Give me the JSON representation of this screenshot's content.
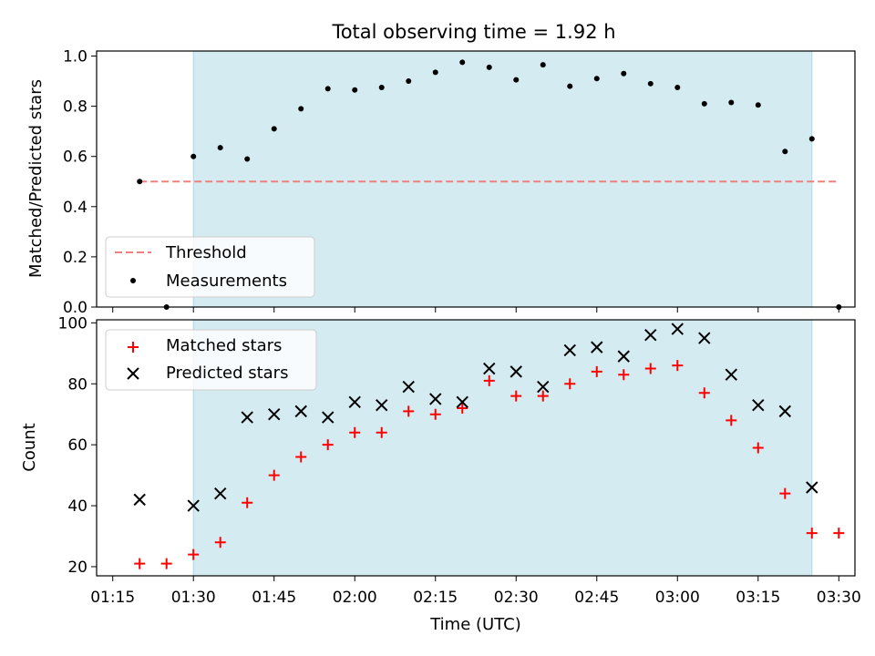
{
  "figure": {
    "title": "Total observing time = 1.92 h"
  },
  "chart_data": [
    {
      "type": "scatter",
      "ylabel": "Matched/Predicted stars",
      "xlabel": "",
      "xlim": [
        "01:12",
        "03:33"
      ],
      "ylim": [
        0,
        1.02
      ],
      "xticks": [
        "01:15",
        "01:30",
        "01:45",
        "02:00",
        "02:15",
        "02:30",
        "02:45",
        "03:00",
        "03:15",
        "03:30"
      ],
      "yticks": [
        "0.0",
        "0.2",
        "0.4",
        "0.6",
        "0.8",
        "1.0"
      ],
      "shaded_span": [
        "01:30",
        "03:25"
      ],
      "threshold": {
        "name": "Threshold",
        "y": 0.5,
        "x": [
          "01:20",
          "03:30"
        ],
        "color": "#f08080"
      },
      "series": [
        {
          "name": "Measurements",
          "color": "#000000",
          "marker": "dot",
          "x": [
            "01:20",
            "01:25",
            "01:30",
            "01:35",
            "01:40",
            "01:45",
            "01:50",
            "01:55",
            "02:00",
            "02:05",
            "02:10",
            "02:15",
            "02:20",
            "02:25",
            "02:30",
            "02:35",
            "02:40",
            "02:45",
            "02:50",
            "02:55",
            "03:00",
            "03:05",
            "03:10",
            "03:15",
            "03:20",
            "03:25",
            "03:30"
          ],
          "y": [
            0.5,
            0.0,
            0.6,
            0.635,
            0.59,
            0.71,
            0.79,
            0.87,
            0.865,
            0.875,
            0.9,
            0.935,
            0.975,
            0.955,
            0.905,
            0.965,
            0.88,
            0.91,
            0.93,
            0.89,
            0.875,
            0.81,
            0.815,
            0.805,
            0.62,
            0.67,
            0.0
          ]
        }
      ],
      "legend_position": "lower-left",
      "grid": false
    },
    {
      "type": "scatter",
      "ylabel": "Count",
      "xlabel": "Time (UTC)",
      "xlim": [
        "01:12",
        "03:33"
      ],
      "ylim": [
        17,
        101
      ],
      "xticks": [
        "01:15",
        "01:30",
        "01:45",
        "02:00",
        "02:15",
        "02:30",
        "02:45",
        "03:00",
        "03:15",
        "03:30"
      ],
      "yticks": [
        "20",
        "40",
        "60",
        "80",
        "100"
      ],
      "shaded_span": [
        "01:30",
        "03:25"
      ],
      "series": [
        {
          "name": "Matched stars",
          "color": "#ff0000",
          "marker": "plus",
          "x": [
            "01:20",
            "01:25",
            "01:30",
            "01:35",
            "01:40",
            "01:45",
            "01:50",
            "01:55",
            "02:00",
            "02:05",
            "02:10",
            "02:15",
            "02:20",
            "02:25",
            "02:30",
            "02:35",
            "02:40",
            "02:45",
            "02:50",
            "02:55",
            "03:00",
            "03:05",
            "03:10",
            "03:15",
            "03:20",
            "03:25",
            "03:30"
          ],
          "y": [
            21,
            21,
            24,
            28,
            41,
            50,
            56,
            60,
            64,
            64,
            71,
            70,
            72,
            81,
            76,
            76,
            80,
            84,
            83,
            85,
            86,
            77,
            68,
            59,
            44,
            31,
            31
          ]
        },
        {
          "name": "Predicted stars",
          "color": "#000000",
          "marker": "x",
          "x": [
            "01:20",
            "01:30",
            "01:35",
            "01:40",
            "01:45",
            "01:50",
            "01:55",
            "02:00",
            "02:05",
            "02:10",
            "02:15",
            "02:20",
            "02:25",
            "02:30",
            "02:35",
            "02:40",
            "02:45",
            "02:50",
            "02:55",
            "03:00",
            "03:05",
            "03:10",
            "03:15",
            "03:20",
            "03:25"
          ],
          "y": [
            42,
            40,
            44,
            69,
            70,
            71,
            69,
            74,
            73,
            79,
            75,
            74,
            85,
            84,
            79,
            91,
            92,
            89,
            96,
            98,
            95,
            83,
            73,
            71,
            46
          ]
        }
      ],
      "legend_position": "upper-left",
      "grid": false
    }
  ],
  "colors": {
    "span_fill": "#add8e6"
  }
}
